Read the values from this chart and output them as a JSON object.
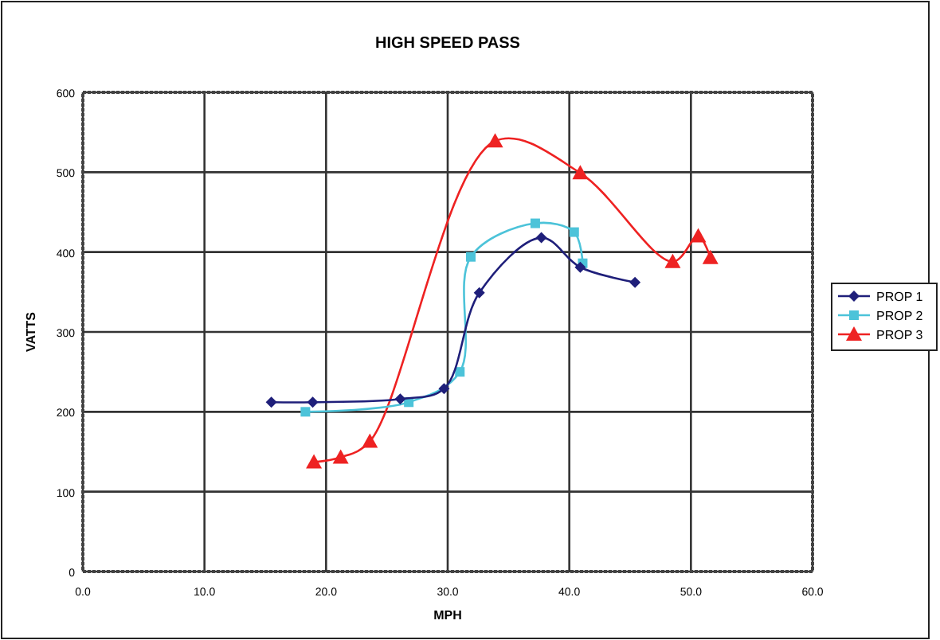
{
  "chart_data": {
    "type": "line",
    "title": "HIGH SPEED PASS",
    "xlabel": "MPH",
    "ylabel": "VATTS",
    "xlim": [
      0,
      60
    ],
    "ylim": [
      0,
      600
    ],
    "xticks": [
      {
        "value": 0,
        "label": "0.0"
      },
      {
        "value": 10,
        "label": "10.0"
      },
      {
        "value": 20,
        "label": "20.0"
      },
      {
        "value": 30,
        "label": "30.0"
      },
      {
        "value": 40,
        "label": "40.0"
      },
      {
        "value": 50,
        "label": "50.0"
      },
      {
        "value": 60,
        "label": "60.0"
      }
    ],
    "yticks": [
      0,
      100,
      200,
      300,
      400,
      500,
      600
    ],
    "grid": true,
    "legend": "right",
    "series": [
      {
        "name": "PROP 1",
        "color": "#1f1f7a",
        "marker": "diamond",
        "x": [
          15.5,
          18.9,
          26.1,
          29.7,
          32.6,
          37.7,
          40.9,
          45.4
        ],
        "values": [
          212,
          212,
          216,
          229,
          349,
          418,
          381,
          362
        ]
      },
      {
        "name": "PROP 2",
        "color": "#4cc3d9",
        "marker": "square",
        "x": [
          18.3,
          26.8,
          31.0,
          31.9,
          37.2,
          40.4,
          41.1
        ],
        "values": [
          200,
          212,
          250,
          394,
          436,
          425,
          386
        ]
      },
      {
        "name": "PROP 3",
        "color": "#ee2222",
        "marker": "triangle",
        "x": [
          19.0,
          21.2,
          23.6,
          33.9,
          40.9,
          48.5,
          50.6,
          51.6
        ],
        "values": [
          137,
          143,
          163,
          539,
          499,
          388,
          420,
          393
        ]
      }
    ]
  }
}
